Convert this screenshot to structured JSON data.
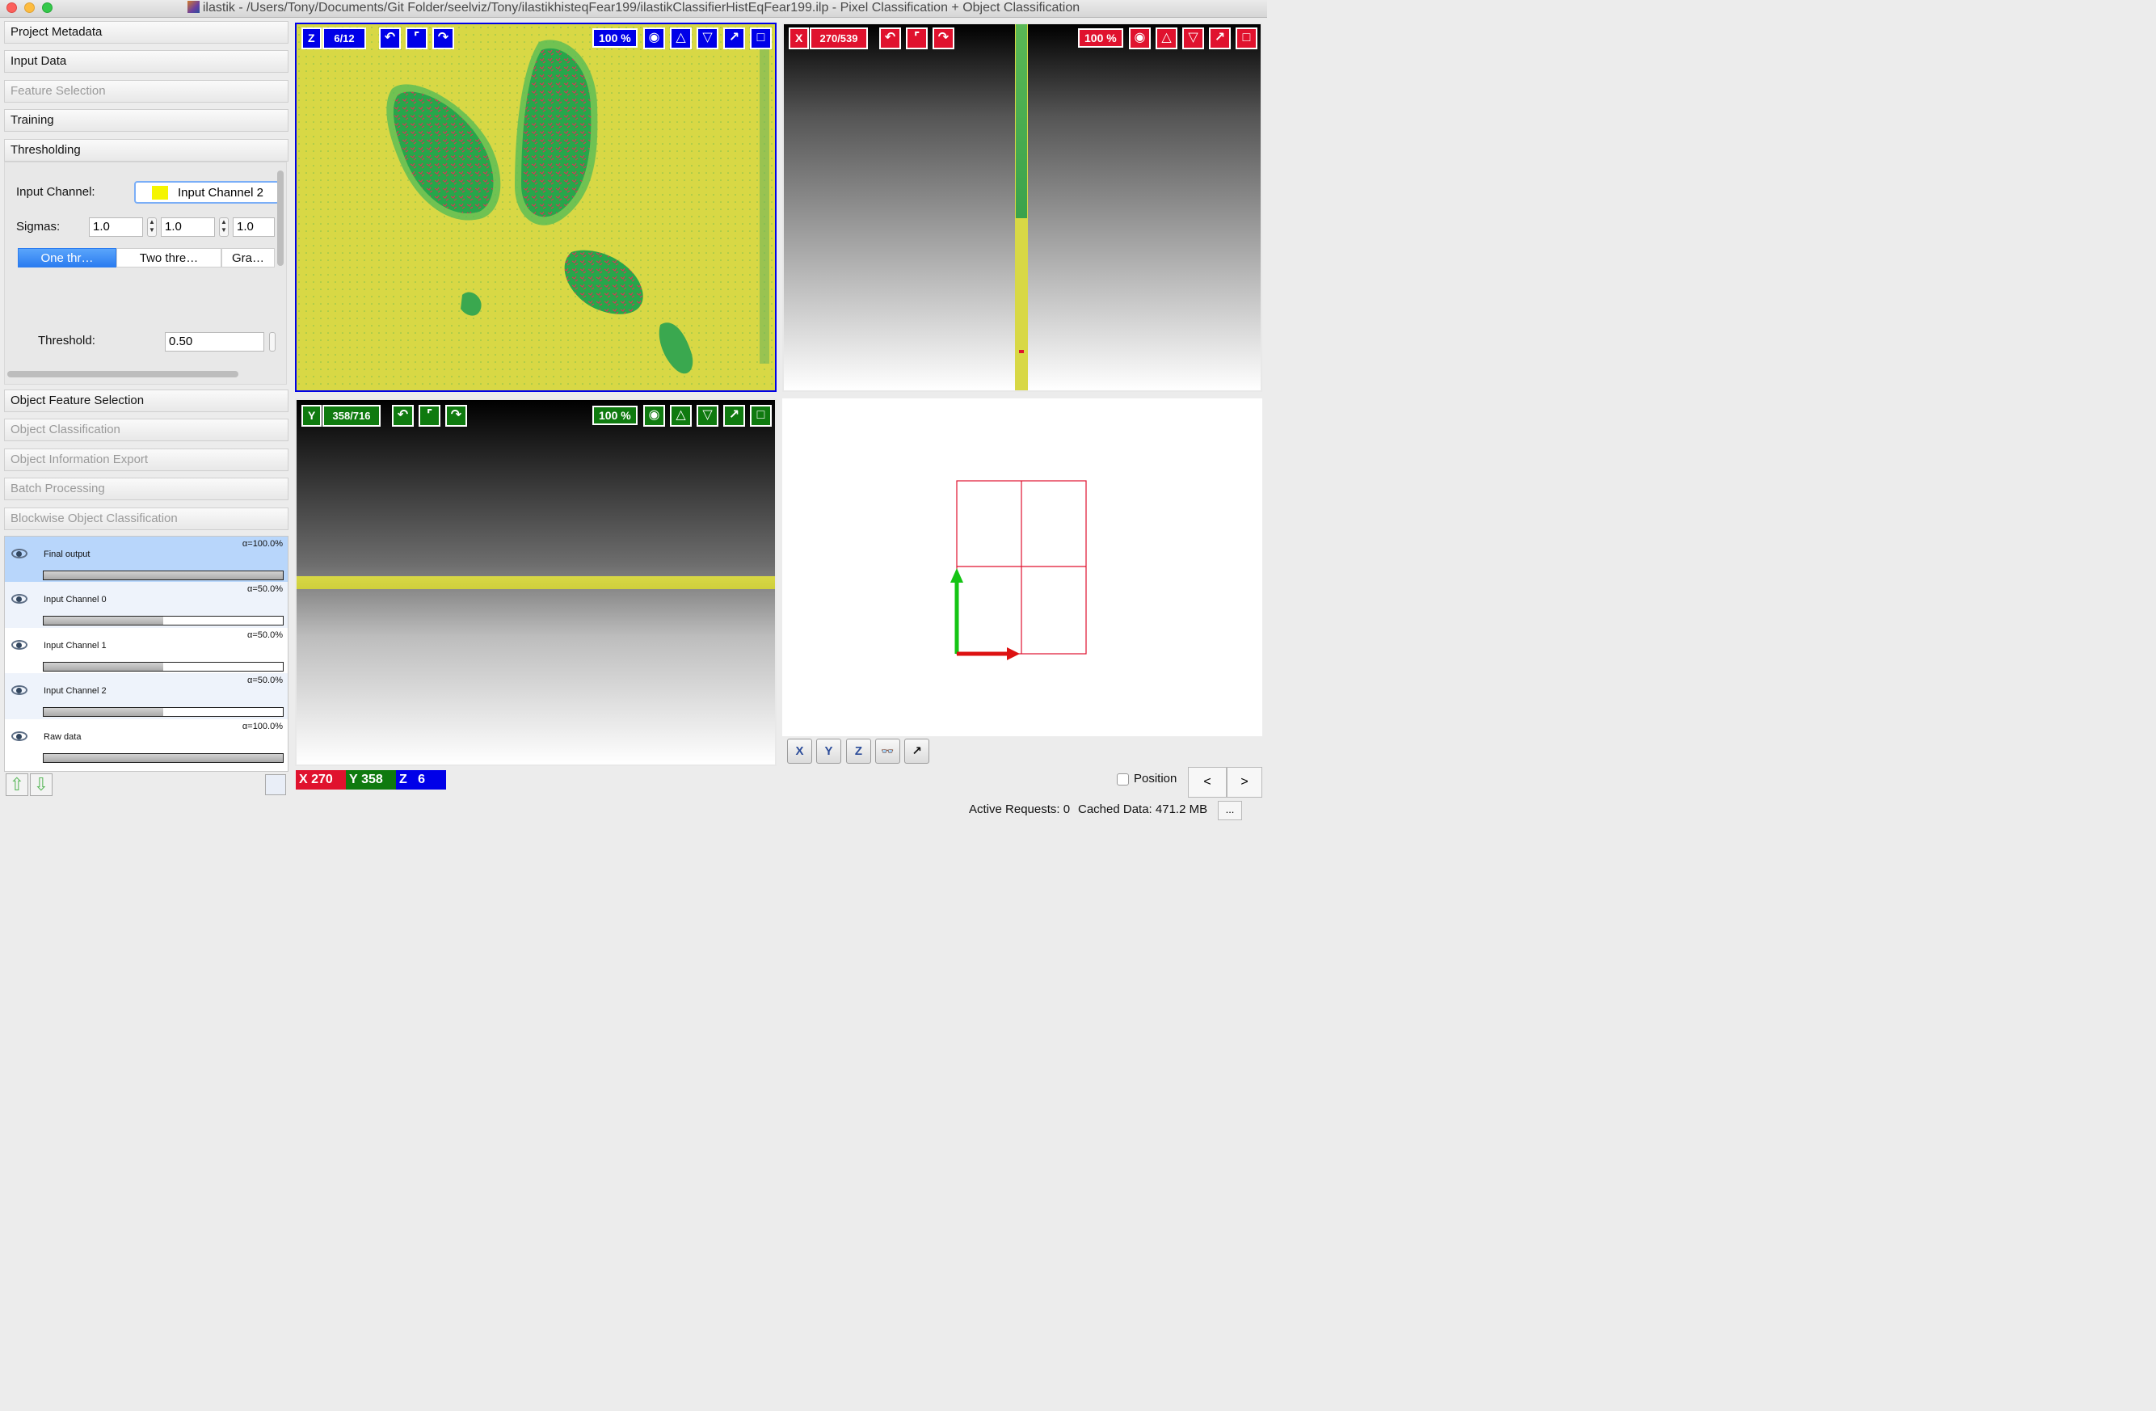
{
  "window": {
    "title": "ilastik - /Users/Tony/Documents/Git Folder/seelviz/Tony/ilastikhisteqFear199/ilastikClassifierHistEqFear199.ilp - Pixel Classification + Object Classification"
  },
  "applets": [
    {
      "label": "Project Metadata",
      "enabled": true
    },
    {
      "label": "Input Data",
      "enabled": true
    },
    {
      "label": "Feature Selection",
      "enabled": false
    },
    {
      "label": "Training",
      "enabled": true
    },
    {
      "label": "Thresholding",
      "enabled": true
    },
    {
      "label": "Object Feature Selection",
      "enabled": true
    },
    {
      "label": "Object Classification",
      "enabled": false
    },
    {
      "label": "Object Information Export",
      "enabled": false
    },
    {
      "label": "Batch Processing",
      "enabled": false
    },
    {
      "label": "Blockwise Object Classification",
      "enabled": false
    }
  ],
  "thresholding": {
    "input_channel_label": "Input Channel:",
    "input_channel_value": "Input Channel 2",
    "input_channel_color": "#f5f500",
    "sigmas_label": "Sigmas:",
    "sigmas": [
      "1.0",
      "1.0",
      "1.0"
    ],
    "tabs": [
      {
        "label": "One thr…",
        "active": true
      },
      {
        "label": "Two thre…",
        "active": false
      },
      {
        "label": "Gra…",
        "active": false
      }
    ],
    "threshold_label": "Threshold:",
    "threshold_value": "0.50"
  },
  "layers": [
    {
      "name": "Final output",
      "alpha": "α=100.0%",
      "opacity": 1.0,
      "selected": true
    },
    {
      "name": "Input Channel 0",
      "alpha": "α=50.0%",
      "opacity": 0.5,
      "selected": false
    },
    {
      "name": "Input Channel 1",
      "alpha": "α=50.0%",
      "opacity": 0.5,
      "selected": false
    },
    {
      "name": "Input Channel 2",
      "alpha": "α=50.0%",
      "opacity": 0.5,
      "selected": false
    },
    {
      "name": "Raw data",
      "alpha": "α=100.0%",
      "opacity": 1.0,
      "selected": false
    }
  ],
  "views": {
    "z": {
      "axis": "Z",
      "slice": "6/12",
      "zoom": "100 %",
      "color": "#0000e8"
    },
    "x": {
      "axis": "X",
      "slice": "270/539",
      "zoom": "100 %",
      "color": "#e0122e"
    },
    "y": {
      "axis": "Y",
      "slice": "358/716",
      "zoom": "100 %",
      "color": "#0f7a0f"
    }
  },
  "coords": {
    "x_label": "X",
    "x": "270",
    "y_label": "Y",
    "y": "358",
    "z_label": "Z",
    "z": "6"
  },
  "view3d_toolbar": [
    "X",
    "Y",
    "Z",
    "anaglyph-glasses-icon",
    "arrow-icon"
  ],
  "position_label": "Position",
  "nav": {
    "prev": "<",
    "next": ">"
  },
  "status": {
    "active_requests": "Active Requests: 0",
    "cached_data": "Cached Data: 471.2 MB",
    "more": "..."
  },
  "colors": {
    "image_yellow": "#d8d845",
    "blob_green": "#2aa84a",
    "label_red": "#e0122e"
  }
}
